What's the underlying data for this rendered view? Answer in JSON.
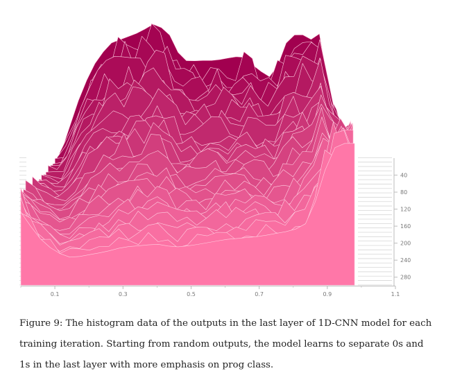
{
  "chart_data": {
    "type": "area",
    "xlim": [
      0.0,
      1.1
    ],
    "x_ticks": [
      "0.1",
      "0.3",
      "0.5",
      "0.7",
      "0.9",
      "1.1"
    ],
    "z_ticks": [
      "40",
      "80",
      "120",
      "160",
      "200",
      "240",
      "280"
    ],
    "zlim": [
      0,
      300
    ],
    "grid": false,
    "top_slice": {
      "step": 0,
      "x": [
        0.12,
        0.18,
        0.22,
        0.26,
        0.36,
        0.38,
        0.43,
        0.47,
        0.49,
        0.53,
        0.57,
        0.63,
        0.66,
        0.69,
        0.74,
        0.78,
        0.82,
        0.84,
        0.88,
        0.91,
        0.95
      ],
      "values": [
        0.005,
        0.045,
        0.063,
        0.075,
        0.0835,
        0.0885,
        0.084,
        0.0655,
        0.0635,
        0.064,
        0.064,
        0.0665,
        0.066,
        0.059,
        0.052,
        0.076,
        0.084,
        0.076,
        0.082,
        0.037,
        0.01
      ]
    },
    "bottom_slice": {
      "step": 299,
      "x": [
        0.0,
        0.05,
        0.1,
        0.15,
        0.2,
        0.25,
        0.3,
        0.35,
        0.4,
        0.45,
        0.5,
        0.55,
        0.6,
        0.65,
        0.7,
        0.75,
        0.8,
        0.85,
        0.88,
        0.92,
        0.95,
        0.98
      ],
      "values": [
        0.048,
        0.032,
        0.022,
        0.018,
        0.02,
        0.022,
        0.025,
        0.026,
        0.027,
        0.025,
        0.026,
        0.028,
        0.03,
        0.031,
        0.032,
        0.034,
        0.036,
        0.042,
        0.068,
        0.09,
        0.093,
        0.093
      ]
    }
  },
  "caption": {
    "text": "Figure 9: The histogram data of the outputs in the last layer of 1D-CNN model for each training iteration. Starting from random outputs, the model learns to separate 0s and 1s in the last layer with more emphasis on prog class."
  },
  "colors": {
    "back": "#a1004f",
    "front": "#ff77a8",
    "line": "#ffd0e2",
    "axis": "#bbbbbb"
  }
}
